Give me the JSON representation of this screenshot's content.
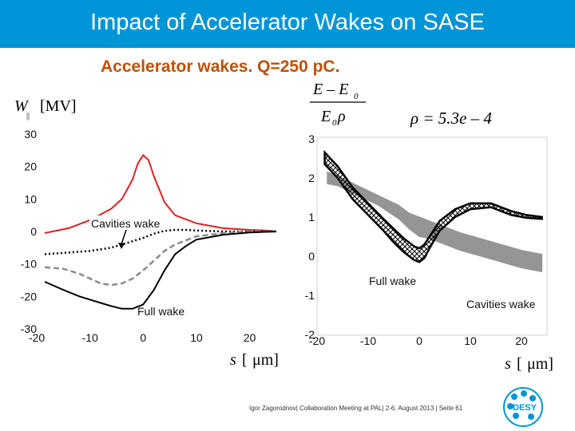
{
  "slide": {
    "title": "Impact of Accelerator Wakes on SASE",
    "subtitle": "Accelerator wakes. Q=250 pC.",
    "footer": "Igor Zagorodnov| Collaboration Meeting at PAL| 2-6. August 2013 | Seite 61",
    "logo_text": "DESY"
  },
  "colors": {
    "title_bar": "#0095d6",
    "subtitle": "#c05000",
    "red_curve": "#e02020",
    "band_gray": "#8a8a8a"
  },
  "chart_data": [
    {
      "type": "line",
      "ylabel_parts": [
        "W",
        "||",
        "[MV]"
      ],
      "xlabel_parts": [
        "s",
        "[",
        "μm]"
      ],
      "xticks": [
        -20,
        -10,
        0,
        10,
        20
      ],
      "yticks": [
        30,
        20,
        10,
        0,
        -10,
        -20,
        -30
      ],
      "xlim": [
        -20,
        25
      ],
      "ylim": [
        -30,
        30
      ],
      "series": [
        {
          "name": "",
          "style": "red-solid",
          "x": [
            -18.5,
            -14,
            -10,
            -6,
            -4,
            -2,
            -1,
            0,
            1,
            2,
            4,
            6,
            10,
            15,
            20,
            23,
            25
          ],
          "y": [
            -0.5,
            1,
            3.5,
            7,
            10,
            16,
            21,
            23.5,
            22,
            17,
            9,
            5,
            2.5,
            1,
            0.5,
            0.3,
            0
          ]
        },
        {
          "name": "Cavities wake",
          "style": "black-dotted",
          "x": [
            -18.5,
            -14,
            -10,
            -6,
            -4,
            -2,
            0,
            2,
            4,
            6,
            8,
            10,
            15,
            20,
            23,
            25
          ],
          "y": [
            -7,
            -6.5,
            -6,
            -5,
            -4,
            -3,
            -2,
            -0.7,
            0.2,
            0.5,
            0.5,
            0.3,
            0,
            0,
            0,
            0
          ]
        },
        {
          "name": "",
          "style": "gray-dashed",
          "x": [
            -18.5,
            -15,
            -12,
            -10,
            -8,
            -6,
            -4,
            -2,
            0,
            2,
            4,
            6,
            10,
            15,
            20,
            25
          ],
          "y": [
            -11,
            -11.5,
            -13,
            -14.5,
            -16,
            -16.5,
            -16,
            -14.5,
            -12,
            -9,
            -6,
            -4,
            -1.5,
            -0.5,
            0,
            0
          ]
        },
        {
          "name": "Full wake",
          "style": "black-solid",
          "x": [
            -18.5,
            -15,
            -12,
            -10,
            -8,
            -6,
            -4,
            -2,
            0,
            2,
            4,
            6,
            8,
            10,
            15,
            20,
            25
          ],
          "y": [
            -15.5,
            -18,
            -20,
            -21,
            -22,
            -23,
            -23.8,
            -23.8,
            -22.5,
            -18,
            -12,
            -7,
            -4.5,
            -2.5,
            -1,
            -0.3,
            0
          ]
        }
      ],
      "annotations": [
        {
          "text": "Cavities wake",
          "x": -10,
          "y": 0.8,
          "arrow_to": [
            -5,
            -4.5
          ]
        },
        {
          "text": "Full wake",
          "x": -8,
          "y": -25.5
        }
      ]
    },
    {
      "type": "scatter",
      "ylabel_parts": [
        "E – E",
        "0",
        "E",
        "0",
        "ρ"
      ],
      "rho_label": "ρ = 5.3e – 4",
      "xlabel_parts": [
        "s",
        "[",
        "μm]"
      ],
      "xticks": [
        -20,
        -10,
        0,
        10,
        20
      ],
      "yticks": [
        3,
        2,
        1,
        0,
        -1,
        -2
      ],
      "xlim": [
        -20,
        25
      ],
      "ylim": [
        -2,
        3.2
      ],
      "series": [
        {
          "name": "Cavities wake",
          "style": "gray-band",
          "x": [
            -18,
            -16,
            -12,
            -8,
            -4,
            -2,
            0,
            2,
            4,
            8,
            12,
            16,
            20,
            24
          ],
          "y_top": [
            2.15,
            2.05,
            1.8,
            1.55,
            1.3,
            1.1,
            1.0,
            0.9,
            0.8,
            0.6,
            0.45,
            0.3,
            0.15,
            0.05
          ],
          "y_bottom": [
            1.85,
            1.8,
            1.55,
            1.3,
            0.95,
            0.7,
            0.5,
            0.45,
            0.35,
            0.15,
            0.0,
            -0.15,
            -0.3,
            -0.4
          ]
        },
        {
          "name": "Full wake",
          "style": "black-band",
          "x": [
            -18.5,
            -16,
            -13,
            -10,
            -7,
            -5,
            -3,
            -1,
            0,
            1,
            2,
            4,
            7,
            10,
            14,
            18,
            21,
            24
          ],
          "y_top": [
            2.65,
            2.3,
            1.75,
            1.35,
            0.95,
            0.7,
            0.45,
            0.25,
            0.2,
            0.3,
            0.5,
            0.9,
            1.2,
            1.35,
            1.35,
            1.15,
            1.05,
            1.0
          ],
          "y_bottom": [
            2.35,
            2.0,
            1.45,
            1.05,
            0.65,
            0.35,
            0.1,
            -0.1,
            -0.15,
            -0.05,
            0.2,
            0.65,
            1.0,
            1.2,
            1.25,
            1.05,
            0.98,
            0.95
          ]
        }
      ],
      "annotations": [
        {
          "text": "Full wake",
          "x": -4,
          "y": -0.65
        },
        {
          "text": "Cavities wake",
          "x": 12,
          "y": -1.25
        }
      ]
    }
  ]
}
